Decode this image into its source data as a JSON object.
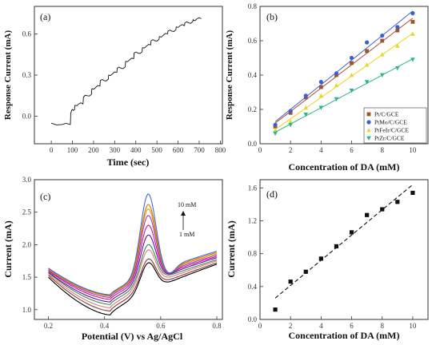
{
  "chart_data": [
    {
      "id": "a",
      "type": "line",
      "panel_label": "(a)",
      "xlabel": "Time (sec)",
      "ylabel": "Response Current (mA)",
      "xlim": [
        -80,
        810
      ],
      "ylim": [
        -0.2,
        0.8
      ],
      "xticks": [
        "0",
        "100",
        "200",
        "300",
        "400",
        "500",
        "600",
        "700",
        "800"
      ],
      "yticks": [
        "0.0",
        "0.3",
        "0.6"
      ],
      "series": [
        {
          "color": "#111111",
          "x": [
            0,
            50,
            90,
            92,
            100,
            110,
            112,
            130,
            150,
            152,
            170,
            190,
            192,
            210,
            230,
            232,
            250,
            270,
            272,
            290,
            310,
            312,
            330,
            350,
            352,
            370,
            390,
            392,
            410,
            430,
            432,
            450,
            470,
            472,
            490,
            510,
            512,
            530,
            550,
            552,
            570,
            590,
            592,
            610,
            630,
            632,
            650,
            670,
            672,
            690,
            710
          ],
          "y": [
            -0.05,
            -0.06,
            -0.06,
            0.02,
            0.05,
            0.05,
            0.08,
            0.09,
            0.09,
            0.14,
            0.15,
            0.16,
            0.2,
            0.21,
            0.22,
            0.26,
            0.26,
            0.27,
            0.3,
            0.31,
            0.32,
            0.35,
            0.35,
            0.36,
            0.4,
            0.41,
            0.42,
            0.46,
            0.46,
            0.47,
            0.5,
            0.51,
            0.52,
            0.55,
            0.55,
            0.56,
            0.58,
            0.59,
            0.6,
            0.62,
            0.62,
            0.63,
            0.65,
            0.66,
            0.66,
            0.68,
            0.68,
            0.69,
            0.7,
            0.71,
            0.71
          ]
        }
      ]
    },
    {
      "id": "b",
      "type": "scatter",
      "panel_label": "(b)",
      "xlabel": "Concentration of DA (mM)",
      "ylabel": "Response Current (mA)",
      "xlim": [
        0,
        11
      ],
      "ylim": [
        0,
        0.8
      ],
      "xticks": [
        "0",
        "2",
        "4",
        "6",
        "8",
        "10"
      ],
      "yticks": [
        "0.0",
        "0.2",
        "0.4",
        "0.6",
        "0.8"
      ],
      "legend_position": "bottom-right",
      "x": [
        1,
        2,
        3,
        4,
        5,
        6,
        7,
        8,
        9,
        10
      ],
      "series": [
        {
          "name": "Pt/C/GCE",
          "color": "#a0522d",
          "marker": "square",
          "values": [
            0.1,
            0.18,
            0.27,
            0.33,
            0.4,
            0.47,
            0.54,
            0.6,
            0.66,
            0.71
          ]
        },
        {
          "name": "PtMo/C/GCE",
          "color": "#3f5fcf",
          "marker": "circle",
          "values": [
            0.11,
            0.19,
            0.28,
            0.36,
            0.41,
            0.5,
            0.59,
            0.63,
            0.68,
            0.76
          ]
        },
        {
          "name": "PtFeIr/C/GCE",
          "color": "#e6d62a",
          "marker": "triangle-up",
          "values": [
            0.08,
            0.13,
            0.21,
            0.28,
            0.34,
            0.4,
            0.46,
            0.52,
            0.57,
            0.64
          ]
        },
        {
          "name": "PtZr/C/GCE",
          "color": "#2fb38a",
          "marker": "triangle-down",
          "values": [
            0.06,
            0.11,
            0.17,
            0.21,
            0.26,
            0.31,
            0.36,
            0.4,
            0.44,
            0.49
          ]
        }
      ]
    },
    {
      "id": "c",
      "type": "line",
      "panel_label": "(c)",
      "xlabel": "Potential (V) vs Ag/AgCl",
      "ylabel": "Current (mA)",
      "xlim": [
        0.15,
        0.82
      ],
      "ylim": [
        0.85,
        3.0
      ],
      "xticks": [
        "0.2",
        "0.4",
        "0.6",
        "0.8"
      ],
      "yticks": [
        "1.0",
        "1.5",
        "2.0",
        "2.5",
        "3.0"
      ],
      "annotations": [
        "10 mM",
        "1 mM"
      ],
      "curves": [
        {
          "color": "#000000",
          "y0": 1.5,
          "ymin": 0.92,
          "peak": 1.72,
          "yend": 1.7
        },
        {
          "color": "#8b3a3a",
          "y0": 1.53,
          "ymin": 0.98,
          "peak": 1.78,
          "yend": 1.72
        },
        {
          "color": "#e07a7a",
          "y0": 1.55,
          "ymin": 1.03,
          "peak": 1.92,
          "yend": 1.75
        },
        {
          "color": "#2f8f4f",
          "y0": 1.57,
          "ymin": 1.08,
          "peak": 2.0,
          "yend": 1.77
        },
        {
          "color": "#6a0dad",
          "y0": 1.58,
          "ymin": 1.12,
          "peak": 2.15,
          "yend": 1.8
        },
        {
          "color": "#c71585",
          "y0": 1.6,
          "ymin": 1.16,
          "peak": 2.3,
          "yend": 1.82
        },
        {
          "color": "#9932cc",
          "y0": 1.61,
          "ymin": 1.19,
          "peak": 2.45,
          "yend": 1.84
        },
        {
          "color": "#ff8c00",
          "y0": 1.62,
          "ymin": 1.21,
          "peak": 2.55,
          "yend": 1.86
        },
        {
          "color": "#b8860b",
          "y0": 1.63,
          "ymin": 1.22,
          "peak": 2.62,
          "yend": 1.88
        },
        {
          "color": "#4169e1",
          "y0": 1.64,
          "ymin": 1.23,
          "peak": 2.78,
          "yend": 1.9
        }
      ]
    },
    {
      "id": "d",
      "type": "scatter",
      "panel_label": "(d)",
      "xlabel": "Concentration of DA (mM)",
      "ylabel": "Current (mA)",
      "xlim": [
        0,
        11
      ],
      "ylim": [
        0,
        1.7
      ],
      "xticks": [
        "0",
        "2",
        "4",
        "6",
        "8",
        "10"
      ],
      "yticks": [
        "0.0",
        "0.4",
        "0.8",
        "1.2",
        "1.6"
      ],
      "x": [
        1,
        2,
        3,
        4,
        5,
        6,
        7,
        8,
        9,
        10
      ],
      "values": [
        0.12,
        0.46,
        0.58,
        0.74,
        0.89,
        1.06,
        1.27,
        1.34,
        1.43,
        1.54
      ],
      "fit": {
        "x": [
          1,
          10
        ],
        "y": [
          0.26,
          1.64
        ],
        "style": "dashed"
      }
    }
  ]
}
